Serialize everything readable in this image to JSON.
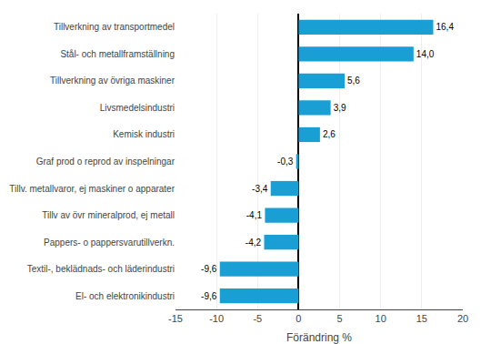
{
  "chart_data": {
    "type": "bar",
    "orientation": "horizontal",
    "categories": [
      "El- och elektronikindustri",
      "Textil-, beklädnads- och läderindustri",
      "Pappers- o pappersvarutillverkn.",
      "Tillv av övr mineralprod, ej metall",
      "Tillv. metallvaror, ej maskiner o apparater",
      "Graf prod o reprod av inspelningar",
      "Kemisk industri",
      "Livsmedelsindustri",
      "Tillverkning av övriga maskiner",
      "Stål- och metallframställning",
      "Tillverkning av transportmedel"
    ],
    "values": [
      -9.6,
      -9.6,
      -4.2,
      -4.1,
      -3.4,
      -0.3,
      2.6,
      3.9,
      5.6,
      14.0,
      16.4
    ],
    "value_labels": [
      "-9,6",
      "-9,6",
      "-4,2",
      "-4,1",
      "-3,4",
      "-0,3",
      "2,6",
      "3,9",
      "5,6",
      "14,0",
      "16,4"
    ],
    "color": "#1a9fd4",
    "xlabel": "Förändring %",
    "xlim": [
      -15,
      20
    ],
    "xticks": [
      -15,
      -10,
      -5,
      0,
      5,
      10,
      15,
      20
    ],
    "grid": true,
    "data_labels": true
  }
}
